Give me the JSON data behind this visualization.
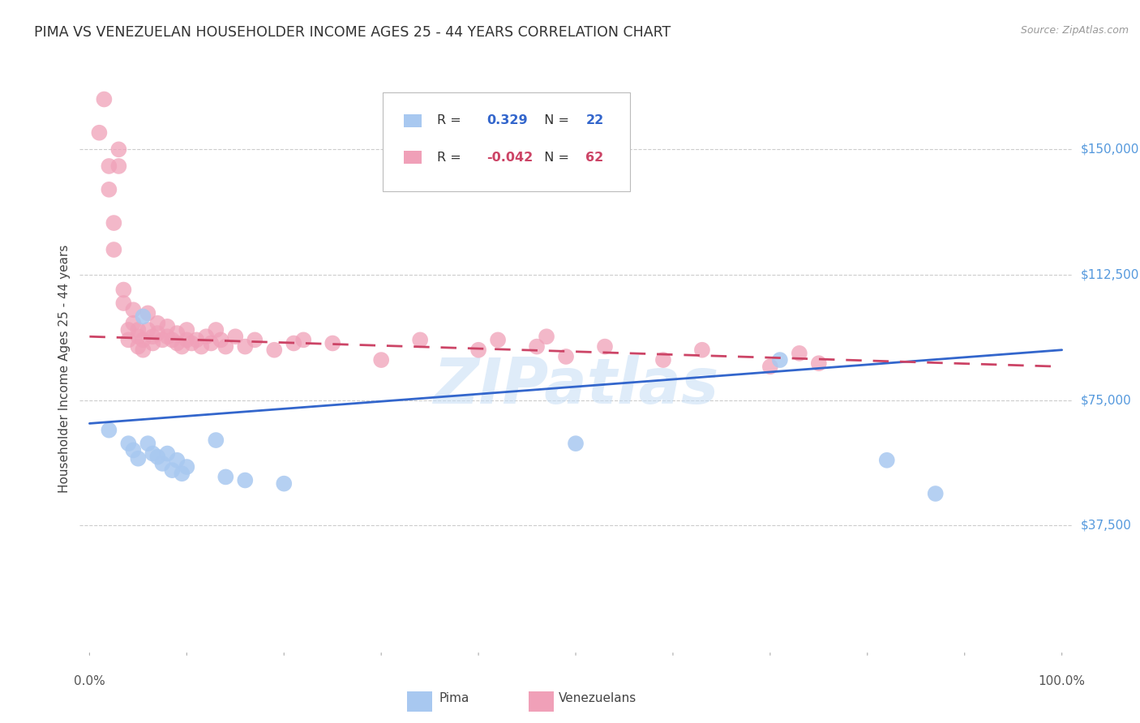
{
  "title": "PIMA VS VENEZUELAN HOUSEHOLDER INCOME AGES 25 - 44 YEARS CORRELATION CHART",
  "source": "Source: ZipAtlas.com",
  "ylabel": "Householder Income Ages 25 - 44 years",
  "ytick_labels": [
    "$37,500",
    "$75,000",
    "$112,500",
    "$150,000"
  ],
  "ytick_values": [
    37500,
    75000,
    112500,
    150000
  ],
  "ylim": [
    0,
    168750
  ],
  "xlim": [
    -0.01,
    1.01
  ],
  "legend_blue_r": "0.329",
  "legend_blue_n": "22",
  "legend_pink_r": "-0.042",
  "legend_pink_n": "62",
  "pima_color": "#a8c8f0",
  "venezuelan_color": "#f0a0b8",
  "blue_line_color": "#3366cc",
  "pink_line_color": "#cc4466",
  "background_color": "#ffffff",
  "grid_color": "#cccccc",
  "watermark": "ZIPatlas",
  "pima_x": [
    0.02,
    0.04,
    0.045,
    0.05,
    0.055,
    0.06,
    0.065,
    0.07,
    0.075,
    0.08,
    0.085,
    0.09,
    0.095,
    0.1,
    0.13,
    0.14,
    0.16,
    0.2,
    0.5,
    0.71,
    0.82,
    0.87
  ],
  "pima_y": [
    66000,
    62000,
    60000,
    57500,
    100000,
    62000,
    59000,
    58000,
    56000,
    59000,
    54000,
    57000,
    53000,
    55000,
    63000,
    52000,
    51000,
    50000,
    62000,
    87000,
    57000,
    47000
  ],
  "venezuelan_x": [
    0.01,
    0.015,
    0.02,
    0.02,
    0.025,
    0.025,
    0.03,
    0.03,
    0.035,
    0.035,
    0.04,
    0.04,
    0.045,
    0.045,
    0.05,
    0.05,
    0.05,
    0.055,
    0.055,
    0.06,
    0.06,
    0.065,
    0.065,
    0.07,
    0.07,
    0.075,
    0.08,
    0.08,
    0.085,
    0.09,
    0.09,
    0.095,
    0.1,
    0.1,
    0.105,
    0.11,
    0.115,
    0.12,
    0.125,
    0.13,
    0.135,
    0.14,
    0.15,
    0.16,
    0.17,
    0.19,
    0.21,
    0.22,
    0.25,
    0.3,
    0.34,
    0.4,
    0.42,
    0.46,
    0.47,
    0.49,
    0.53,
    0.59,
    0.63,
    0.7,
    0.73,
    0.75
  ],
  "venezuelan_y": [
    155000,
    165000,
    145000,
    138000,
    128000,
    120000,
    150000,
    145000,
    108000,
    104000,
    96000,
    93000,
    102000,
    98000,
    96000,
    94000,
    91000,
    93000,
    90000,
    101000,
    96000,
    94000,
    92000,
    98000,
    95000,
    93000,
    97000,
    94000,
    93000,
    95000,
    92000,
    91000,
    96000,
    93000,
    92000,
    93000,
    91000,
    94000,
    92000,
    96000,
    93000,
    91000,
    94000,
    91000,
    93000,
    90000,
    92000,
    93000,
    92000,
    87000,
    93000,
    90000,
    93000,
    91000,
    94000,
    88000,
    91000,
    87000,
    90000,
    85000,
    89000,
    86000
  ],
  "blue_line_x": [
    0.0,
    1.0
  ],
  "blue_line_y": [
    68000,
    90000
  ],
  "pink_line_x": [
    0.0,
    1.0
  ],
  "pink_line_y": [
    94000,
    85000
  ]
}
